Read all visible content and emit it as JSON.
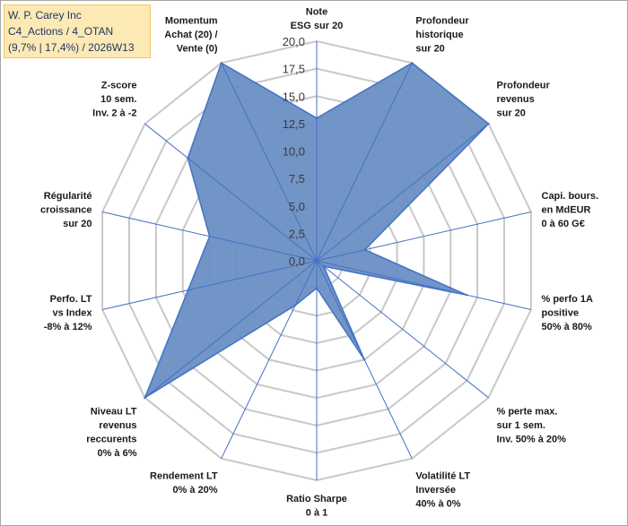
{
  "header": {
    "company": "W. P. Carey Inc",
    "category": "C4_Actions / 4_OTAN",
    "stats": "(9,7% | 17,4%) / 2026W13"
  },
  "colors": {
    "fill": "#6a8fc4",
    "stroke": "#4472c4",
    "grid": "#c8c8c8",
    "badge_bg": "#fde9b4"
  },
  "chart_data": {
    "type": "radar",
    "title": "",
    "rmin": 0,
    "rmax": 20,
    "step": 2.5,
    "tick_labels": [
      "0,0",
      "2,5",
      "5,0",
      "7,5",
      "10,0",
      "12,5",
      "15,0",
      "17,5",
      "20,0"
    ],
    "axes": [
      {
        "label": [
          "Note",
          "ESG sur 20"
        ],
        "value": 13.0
      },
      {
        "label": [
          "Profondeur",
          "historique",
          "sur 20"
        ],
        "value": 20.0
      },
      {
        "label": [
          "Profondeur",
          "revenus",
          "sur 20"
        ],
        "value": 20.0
      },
      {
        "label": [
          "Capi. bours.",
          "en MdEUR",
          "0 à 60 G€"
        ],
        "value": 4.5
      },
      {
        "label": [
          "% perfo 1A",
          "positive",
          "50% à 80%"
        ],
        "value": 14.0
      },
      {
        "label": [
          "% perte max.",
          "sur 1 sem.",
          "Inv. 50% à 20%"
        ],
        "value": 0.8
      },
      {
        "label": [
          "Volatilité LT",
          "Inversée",
          "40% à 0%"
        ],
        "value": 10.0
      },
      {
        "label": [
          "Ratio Sharpe",
          "0 à 1"
        ],
        "value": 2.5
      },
      {
        "label": [
          "Rendement LT",
          "0% à 20%"
        ],
        "value": 4.5
      },
      {
        "label": [
          "Niveau LT",
          "revenus",
          "reccurents",
          "0% à 6%"
        ],
        "value": 20.0
      },
      {
        "label": [
          "Perfo. LT",
          "vs Index",
          "-8% à 12%"
        ],
        "value": 12.0
      },
      {
        "label": [
          "Régularité",
          "croissance",
          "sur 20"
        ],
        "value": 10.0
      },
      {
        "label": [
          "Z-score",
          "10 sem.",
          "Inv. 2 à -2"
        ],
        "value": 15.0
      },
      {
        "label": [
          "Momentum",
          "Achat (20) /",
          "Vente (0)"
        ],
        "value": 20.0
      }
    ]
  }
}
